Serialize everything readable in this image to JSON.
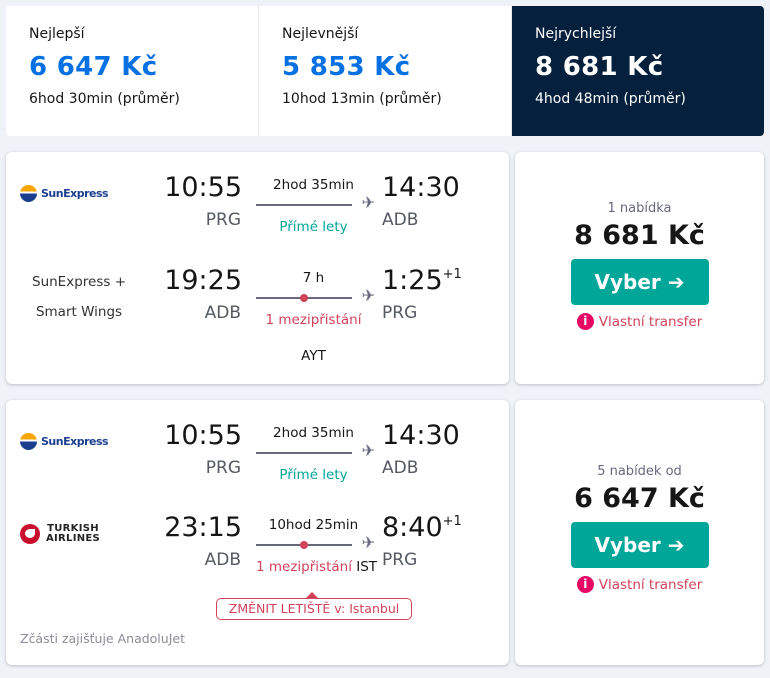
{
  "sort_tabs": [
    {
      "label": "Nejlepší",
      "price": "6 647 Kč",
      "duration": "6hod 30min (průměr)"
    },
    {
      "label": "Nejlevnější",
      "price": "5 853 Kč",
      "duration": "10hod 13min (průměr)"
    },
    {
      "label": "Nejrychlejší",
      "price": "8 681 Kč",
      "duration": "4hod 48min (průměr)"
    }
  ],
  "results": [
    {
      "outbound": {
        "carrier_logo": "SunExpress",
        "dep_time": "10:55",
        "dep_code": "PRG",
        "duration": "2hod 35min",
        "stops": "Přímé lety",
        "arr_time": "14:30",
        "arr_code": "ADB"
      },
      "inbound": {
        "carrier_line1": "SunExpress +",
        "carrier_line2": "Smart Wings",
        "dep_time": "19:25",
        "dep_code": "ADB",
        "duration": "7 h",
        "stops": "1 mezipřistání",
        "via": "AYT",
        "arr_time": "1:25",
        "day_offset": "+1",
        "arr_code": "PRG"
      },
      "offers": "1 nabídka",
      "price": "8 681 Kč",
      "select_label": "Vyber ➔",
      "warning": "Vlastní transfer"
    },
    {
      "outbound": {
        "carrier_logo": "SunExpress",
        "dep_time": "10:55",
        "dep_code": "PRG",
        "duration": "2hod 35min",
        "stops": "Přímé lety",
        "arr_time": "14:30",
        "arr_code": "ADB"
      },
      "inbound": {
        "carrier_logo_l1": "TURKISH",
        "carrier_logo_l2": "AIRLINES",
        "dep_time": "23:15",
        "dep_code": "ADB",
        "duration": "10hod 25min",
        "stops": "1 mezipřistání",
        "via": "IST",
        "arr_time": "8:40",
        "day_offset": "+1",
        "arr_code": "PRG"
      },
      "change_airport": "ZMĚNIT LETIŠTĚ v: Istanbul",
      "operated_by": "Zčásti zajišťuje AnadoluJet",
      "offers": "5 nabídek od",
      "price": "6 647 Kč",
      "select_label": "Vyber ➔",
      "warning": "Vlastní transfer"
    }
  ]
}
